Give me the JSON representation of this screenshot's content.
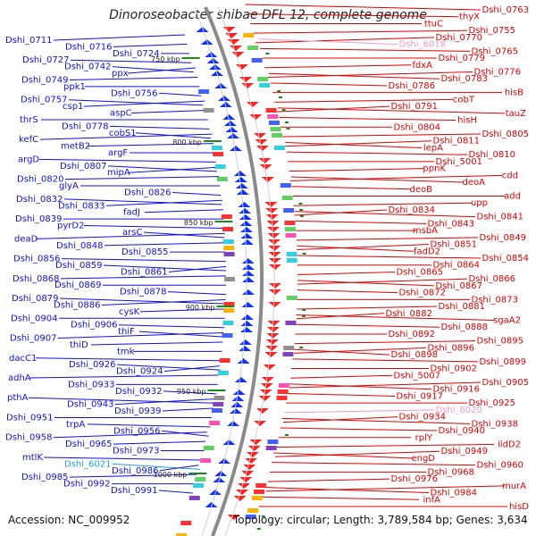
{
  "title": "Dinoroseobacter shibae DFL 12, complete genome",
  "footer": {
    "accession": "Accession: NC_009952",
    "topology": "Topology: circular; Length: 3,789,584 bp; Genes: 3,634"
  },
  "colors": {
    "minus_label": "#1010e0",
    "plus_label": "#e00000",
    "rna_label_minus": "#20a0e0",
    "rna_label_plus": "#f09ac8",
    "backbone": "#8a8a8a",
    "tick": "#1a8a1a"
  },
  "ticks": [
    "750 kbp",
    "800 kbp",
    "850 kbp",
    "900 kbp",
    "950 kbp",
    "1000 kbp"
  ],
  "left_labels": [
    "Dshi_0711",
    "Dshi_0716",
    "Dshi_0724",
    "Dshi_0727",
    "Dshi_0742",
    "ppx",
    "Dshi_0749",
    "ppk1",
    "Dshi_0756",
    "Dshi_0757",
    "csp1",
    "aspC",
    "thrS",
    "Dshi_0778",
    "cobS1",
    "kefC",
    "metB2",
    "argF",
    "argD",
    "Dshi_0807",
    "mipA",
    "Dshi_0820",
    "glyA",
    "Dshi_0826",
    "Dshi_0832",
    "Dshi_0833",
    "fadJ",
    "Dshi_0839",
    "pyrD2",
    "arsC",
    "deaD",
    "Dshi_0848",
    "Dshi_0855",
    "Dshi_0856",
    "Dshi_0859",
    "Dshi_0861",
    "Dshi_0868",
    "Dshi_0869",
    "Dshi_0878",
    "Dshi_0879",
    "Dshi_0886",
    "cysK",
    "Dshi_0904",
    "Dshi_0906",
    "thiF",
    "Dshi_0907",
    "thiD",
    "tmk",
    "dacC1",
    "Dshi_0926",
    "Dshi_0924",
    "adhA",
    "Dshi_0933",
    "Dshi_0932",
    "pthA",
    "Dshi_0943",
    "Dshi_0939",
    "Dshi_0951",
    "trpA",
    "Dshi_0956",
    "Dshi_0958",
    "Dshi_0965",
    "Dshi_0973",
    "mtlK",
    "Dshi_6021",
    "Dshi_0986",
    "Dshi_0985",
    "Dshi_0992",
    "Dshi_0991"
  ],
  "right_labels": [
    "Dshi_0763",
    "thyX",
    "ttuC",
    "Dshi_0755",
    "Dshi_0770",
    "Dshi_6018",
    "Dshi_0765",
    "Dshi_0779",
    "fdxA",
    "Dshi_0776",
    "Dshi_0783",
    "Dshi_0786",
    "hisB",
    "cobT",
    "Dshi_0791",
    "tauZ",
    "hisH",
    "Dshi_0804",
    "Dshi_0805",
    "Dshi_0811",
    "lepA",
    "Dshi_0810",
    "Dshi_5001",
    "ppnK",
    "cdd",
    "deoA",
    "deoB",
    "add",
    "upp",
    "Dshi_0834",
    "Dshi_0841",
    "Dshi_0843",
    "msbA",
    "Dshi_0849",
    "Dshi_0851",
    "fadD2",
    "Dshi_0854",
    "Dshi_0864",
    "Dshi_0865",
    "Dshi_0866",
    "Dshi_0867",
    "Dshi_0872",
    "Dshi_0873",
    "Dshi_0881",
    "Dshi_0882",
    "sgaA2",
    "Dshi_0888",
    "Dshi_0892",
    "Dshi_0895",
    "Dshi_0896",
    "Dshi_0898",
    "Dshi_0899",
    "Dshi_0902",
    "Dshi_5007",
    "Dshi_0905",
    "Dshi_0916",
    "Dshi_0917",
    "Dshi_0925",
    "Dshi_6020",
    "Dshi_0934",
    "Dshi_0938",
    "Dshi_0940",
    "rplY",
    "ildD2",
    "Dshi_0949",
    "engD",
    "Dshi_0960",
    "Dshi_0968",
    "Dshi_0976",
    "murA",
    "Dshi_0984",
    "infA",
    "hisD"
  ]
}
